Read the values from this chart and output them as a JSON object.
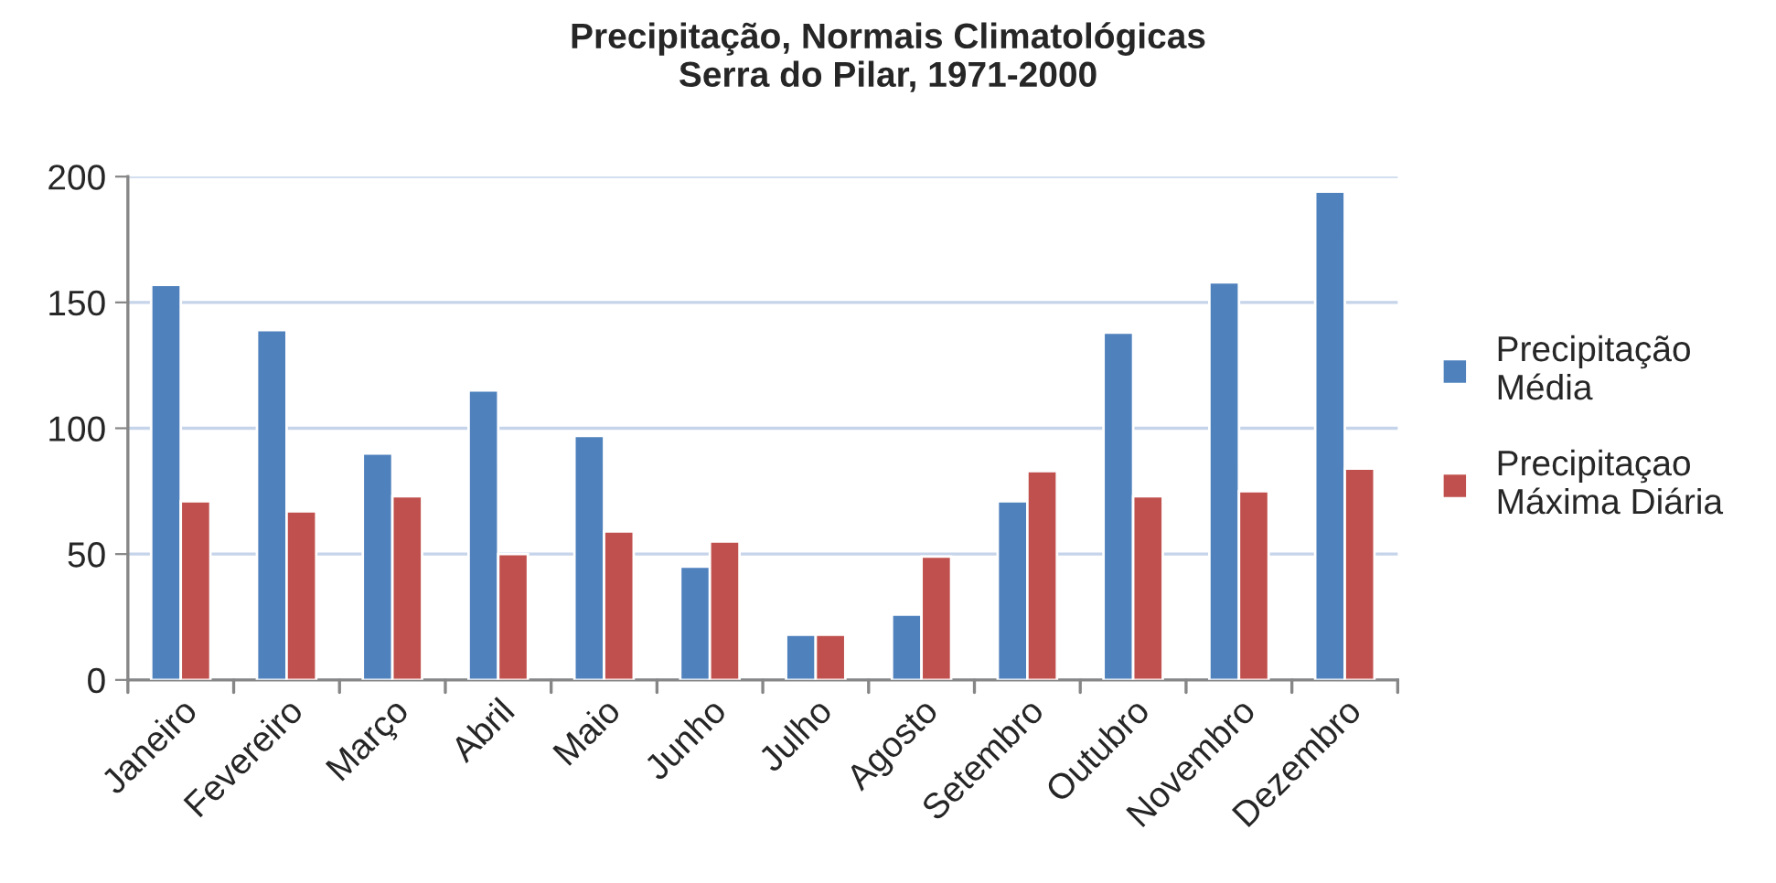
{
  "chart_data": {
    "type": "bar",
    "title": "Precipitação, Normais Climatológicas\nSerra do Pilar, 1971-2000",
    "categories": [
      "Janeiro",
      "Fevereiro",
      "Março",
      "Abril",
      "Maio",
      "Junho",
      "Julho",
      "Agosto",
      "Setembro",
      "Outubro",
      "Novembro",
      "Dezembro"
    ],
    "series": [
      {
        "name": "Precipitação\nMédia",
        "color": "#4f81bd",
        "values": [
          157,
          139,
          90,
          115,
          97,
          45,
          18,
          26,
          71,
          138,
          158,
          194
        ]
      },
      {
        "name": "Precipitaçao\nMáxima Diária",
        "color": "#c0504d",
        "values": [
          71,
          67,
          73,
          50,
          59,
          55,
          18,
          49,
          83,
          73,
          75,
          84
        ]
      }
    ],
    "ylim": [
      0,
      200
    ],
    "yticks": [
      0,
      50,
      100,
      150,
      200
    ],
    "grid": "y",
    "legend": "right"
  }
}
